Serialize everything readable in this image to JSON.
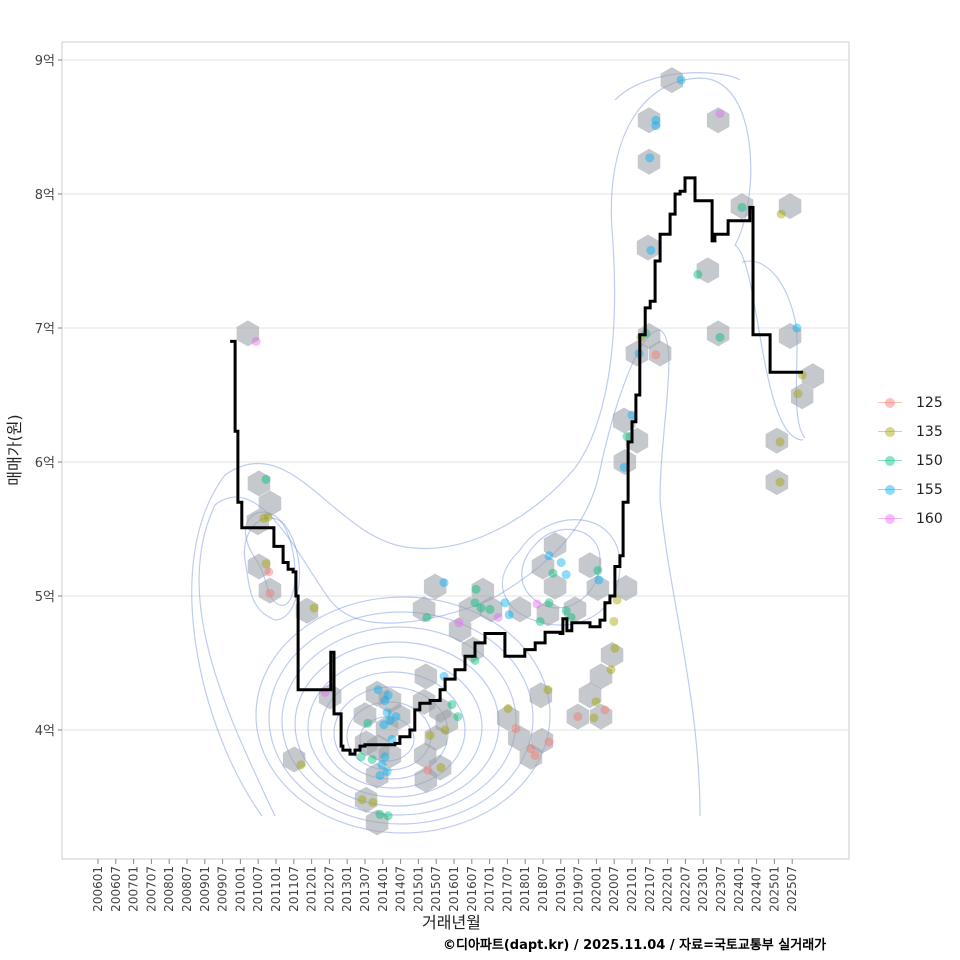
{
  "chart_data": {
    "type": "scatter",
    "title": "",
    "xlabel": "거래년월",
    "ylabel": "매매가(원)",
    "caption": "©디아파트(dapt.kr) / 2025.11.04 / 자료=국토교통부 실거래가",
    "x_ticks": [
      "200601",
      "200607",
      "200701",
      "200707",
      "200801",
      "200807",
      "200901",
      "200907",
      "201001",
      "201007",
      "201101",
      "201107",
      "201201",
      "201207",
      "201301",
      "201307",
      "201401",
      "201407",
      "201501",
      "201507",
      "201601",
      "201607",
      "201701",
      "201707",
      "201801",
      "201807",
      "201901",
      "201907",
      "202001",
      "202007",
      "202101",
      "202107",
      "202201",
      "202207",
      "202301",
      "202307",
      "202401",
      "202407",
      "202501",
      "202507"
    ],
    "y_ticks": [
      {
        "value": 4,
        "label": "4억"
      },
      {
        "value": 5,
        "label": "5억"
      },
      {
        "value": 6,
        "label": "6억"
      },
      {
        "value": 7,
        "label": "7억"
      },
      {
        "value": 8,
        "label": "8억"
      },
      {
        "value": 9,
        "label": "9억"
      }
    ],
    "y_unit": "억원",
    "grid": true,
    "legend_position": "right",
    "legend": [
      {
        "label": "125",
        "color": "#F8766D"
      },
      {
        "label": "135",
        "color": "#A3A500"
      },
      {
        "label": "150",
        "color": "#00BF7D"
      },
      {
        "label": "155",
        "color": "#00B0F6"
      },
      {
        "label": "160",
        "color": "#E76BF3"
      }
    ],
    "median_step_line": [
      [
        2009.71,
        6.9
      ],
      [
        2009.85,
        6.23
      ],
      [
        2009.93,
        5.7
      ],
      [
        2010.04,
        5.51
      ],
      [
        2010.94,
        5.37
      ],
      [
        2011.2,
        5.25
      ],
      [
        2011.34,
        5.2
      ],
      [
        2011.48,
        5.18
      ],
      [
        2011.56,
        5.0
      ],
      [
        2011.62,
        4.3
      ],
      [
        2012.54,
        4.58
      ],
      [
        2012.63,
        4.12
      ],
      [
        2012.83,
        3.88
      ],
      [
        2012.88,
        3.85
      ],
      [
        2013.08,
        3.82
      ],
      [
        2013.22,
        3.85
      ],
      [
        2013.36,
        3.88
      ],
      [
        2013.5,
        3.89
      ],
      [
        2014.34,
        3.9
      ],
      [
        2014.48,
        3.95
      ],
      [
        2014.76,
        4.0
      ],
      [
        2014.9,
        4.15
      ],
      [
        2015.04,
        4.2
      ],
      [
        2015.33,
        4.22
      ],
      [
        2015.61,
        4.3
      ],
      [
        2015.75,
        4.38
      ],
      [
        2016.03,
        4.45
      ],
      [
        2016.31,
        4.55
      ],
      [
        2016.59,
        4.65
      ],
      [
        2016.87,
        4.72
      ],
      [
        2017.29,
        4.72
      ],
      [
        2017.43,
        4.55
      ],
      [
        2017.85,
        4.55
      ],
      [
        2017.99,
        4.6
      ],
      [
        2018.28,
        4.65
      ],
      [
        2018.56,
        4.73
      ],
      [
        2018.98,
        4.72
      ],
      [
        2019.06,
        4.83
      ],
      [
        2019.17,
        4.74
      ],
      [
        2019.31,
        4.8
      ],
      [
        2019.82,
        4.77
      ],
      [
        2020.1,
        4.82
      ],
      [
        2020.24,
        4.95
      ],
      [
        2020.38,
        5.0
      ],
      [
        2020.52,
        5.22
      ],
      [
        2020.66,
        5.3
      ],
      [
        2020.75,
        5.7
      ],
      [
        2020.89,
        6.15
      ],
      [
        2021.0,
        6.3
      ],
      [
        2021.11,
        6.5
      ],
      [
        2021.22,
        6.95
      ],
      [
        2021.37,
        7.15
      ],
      [
        2021.51,
        7.2
      ],
      [
        2021.65,
        7.5
      ],
      [
        2021.79,
        7.7
      ],
      [
        2022.07,
        7.85
      ],
      [
        2022.21,
        8.0
      ],
      [
        2022.35,
        8.02
      ],
      [
        2022.49,
        8.12
      ],
      [
        2022.63,
        8.12
      ],
      [
        2022.77,
        7.95
      ],
      [
        2023.19,
        7.95
      ],
      [
        2023.25,
        7.65
      ],
      [
        2023.33,
        7.7
      ],
      [
        2023.61,
        7.7
      ],
      [
        2023.7,
        7.8
      ],
      [
        2024.26,
        7.8
      ],
      [
        2024.31,
        7.9
      ],
      [
        2024.4,
        6.95
      ],
      [
        2024.82,
        6.95
      ],
      [
        2024.88,
        6.67
      ],
      [
        2025.8,
        6.67
      ]
    ],
    "hexbins": [
      [
        2010.21,
        6.96
      ],
      [
        2010.52,
        5.84
      ],
      [
        2010.83,
        5.69
      ],
      [
        2010.49,
        5.55
      ],
      [
        2010.52,
        5.22
      ],
      [
        2010.83,
        5.04
      ],
      [
        2011.87,
        4.89
      ],
      [
        2011.51,
        3.78
      ],
      [
        2012.52,
        4.25
      ],
      [
        2013.5,
        4.11
      ],
      [
        2013.84,
        4.27
      ],
      [
        2014.2,
        4.22
      ],
      [
        2014.46,
        4.1
      ],
      [
        2014.12,
        4.01
      ],
      [
        2013.87,
        3.87
      ],
      [
        2013.53,
        3.9
      ],
      [
        2014.2,
        3.81
      ],
      [
        2013.84,
        3.66
      ],
      [
        2013.53,
        3.48
      ],
      [
        2013.84,
        3.31
      ],
      [
        2015.21,
        4.4
      ],
      [
        2015.16,
        4.21
      ],
      [
        2015.61,
        4.15
      ],
      [
        2015.8,
        4.06
      ],
      [
        2015.49,
        3.94
      ],
      [
        2015.19,
        3.81
      ],
      [
        2015.61,
        3.72
      ],
      [
        2015.21,
        3.63
      ],
      [
        2015.47,
        5.07
      ],
      [
        2015.16,
        4.9
      ],
      [
        2016.17,
        4.75
      ],
      [
        2016.81,
        5.04
      ],
      [
        2016.45,
        4.9
      ],
      [
        2017.04,
        4.9
      ],
      [
        2016.53,
        4.6
      ],
      [
        2017.85,
        4.9
      ],
      [
        2017.52,
        4.09
      ],
      [
        2017.83,
        3.94
      ],
      [
        2018.16,
        3.8
      ],
      [
        2018.47,
        3.92
      ],
      [
        2018.44,
        4.26
      ],
      [
        2018.84,
        5.38
      ],
      [
        2018.5,
        5.22
      ],
      [
        2018.84,
        5.07
      ],
      [
        2018.64,
        4.87
      ],
      [
        2019.4,
        4.9
      ],
      [
        2019.82,
        5.23
      ],
      [
        2020.04,
        5.06
      ],
      [
        2020.83,
        5.06
      ],
      [
        2020.44,
        4.56
      ],
      [
        2020.13,
        4.4
      ],
      [
        2019.82,
        4.26
      ],
      [
        2020.13,
        4.1
      ],
      [
        2019.48,
        4.1
      ],
      [
        2020.78,
        6.31
      ],
      [
        2021.14,
        6.16
      ],
      [
        2020.8,
        6.0
      ],
      [
        2021.48,
        6.94
      ],
      [
        2021.79,
        6.81
      ],
      [
        2021.14,
        6.81
      ],
      [
        2021.45,
        7.6
      ],
      [
        2021.48,
        8.24
      ],
      [
        2021.48,
        8.55
      ],
      [
        2022.12,
        8.85
      ],
      [
        2023.13,
        7.43
      ],
      [
        2023.42,
        8.55
      ],
      [
        2023.42,
        6.96
      ],
      [
        2024.09,
        7.91
      ],
      [
        2025.44,
        7.91
      ],
      [
        2025.44,
        6.94
      ],
      [
        2025.07,
        6.16
      ],
      [
        2025.07,
        5.85
      ],
      [
        2026.08,
        6.64
      ],
      [
        2025.78,
        6.49
      ]
    ],
    "points": [
      [
        2010.44,
        6.9,
        "160"
      ],
      [
        2010.72,
        5.87,
        "150"
      ],
      [
        2010.66,
        5.58,
        "135"
      ],
      [
        2010.78,
        5.59,
        "135"
      ],
      [
        2010.72,
        5.24,
        "135"
      ],
      [
        2010.8,
        5.18,
        "125"
      ],
      [
        2010.83,
        5.02,
        "125"
      ],
      [
        2012.07,
        4.91,
        "135"
      ],
      [
        2011.7,
        3.74,
        "135"
      ],
      [
        2012.38,
        4.28,
        "160"
      ],
      [
        2013.58,
        4.05,
        "150"
      ],
      [
        2013.87,
        4.3,
        "155"
      ],
      [
        2014.06,
        4.22,
        "155"
      ],
      [
        2014.15,
        4.26,
        "155"
      ],
      [
        2014.12,
        4.13,
        "155"
      ],
      [
        2014.03,
        4.04,
        "155"
      ],
      [
        2014.2,
        4.07,
        "155"
      ],
      [
        2014.37,
        4.1,
        "155"
      ],
      [
        2014.26,
        3.93,
        "155"
      ],
      [
        2014.06,
        3.8,
        "155"
      ],
      [
        2013.98,
        3.74,
        "155"
      ],
      [
        2013.92,
        3.66,
        "155"
      ],
      [
        2014.12,
        3.69,
        "155"
      ],
      [
        2013.39,
        3.8,
        "150"
      ],
      [
        2013.7,
        3.78,
        "150"
      ],
      [
        2013.92,
        3.37,
        "150"
      ],
      [
        2014.15,
        3.36,
        "150"
      ],
      [
        2013.42,
        3.48,
        "135"
      ],
      [
        2013.72,
        3.46,
        "135"
      ],
      [
        2015.27,
        3.7,
        "125"
      ],
      [
        2015.63,
        3.72,
        "135"
      ],
      [
        2015.33,
        3.96,
        "135"
      ],
      [
        2015.75,
        4.0,
        "135"
      ],
      [
        2015.94,
        4.19,
        "150"
      ],
      [
        2016.11,
        4.1,
        "150"
      ],
      [
        2015.72,
        4.4,
        "155"
      ],
      [
        2015.24,
        4.84,
        "150"
      ],
      [
        2015.72,
        5.1,
        "155"
      ],
      [
        2016.14,
        4.8,
        "160"
      ],
      [
        2016.59,
        4.95,
        "150"
      ],
      [
        2016.62,
        5.05,
        "150"
      ],
      [
        2016.76,
        4.91,
        "150"
      ],
      [
        2017.01,
        4.9,
        "150"
      ],
      [
        2016.59,
        4.52,
        "150"
      ],
      [
        2017.24,
        4.84,
        "160"
      ],
      [
        2017.43,
        4.95,
        "155"
      ],
      [
        2017.55,
        4.86,
        "155"
      ],
      [
        2017.52,
        4.16,
        "135"
      ],
      [
        2017.74,
        4.01,
        "125"
      ],
      [
        2018.16,
        3.86,
        "125"
      ],
      [
        2018.28,
        3.81,
        "125"
      ],
      [
        2018.67,
        3.91,
        "125"
      ],
      [
        2018.64,
        4.3,
        "135"
      ],
      [
        2018.33,
        4.94,
        "160"
      ],
      [
        2018.42,
        4.81,
        "150"
      ],
      [
        2018.67,
        5.3,
        "155"
      ],
      [
        2018.78,
        5.17,
        "150"
      ],
      [
        2018.67,
        4.95,
        "150"
      ],
      [
        2019.01,
        5.25,
        "155"
      ],
      [
        2019.15,
        5.16,
        "155"
      ],
      [
        2019.15,
        4.89,
        "150"
      ],
      [
        2019.29,
        4.84,
        "150"
      ],
      [
        2019.48,
        4.1,
        "125"
      ],
      [
        2019.93,
        4.09,
        "135"
      ],
      [
        2019.99,
        4.21,
        "135"
      ],
      [
        2020.24,
        4.15,
        "125"
      ],
      [
        2020.41,
        4.45,
        "135"
      ],
      [
        2020.52,
        4.61,
        "135"
      ],
      [
        2020.04,
        5.19,
        "150"
      ],
      [
        2020.07,
        5.12,
        "155"
      ],
      [
        2020.49,
        4.81,
        "135"
      ],
      [
        2020.58,
        4.97,
        "135"
      ],
      [
        2020.78,
        5.96,
        "155"
      ],
      [
        2020.86,
        6.19,
        "150"
      ],
      [
        2021.0,
        6.35,
        "155"
      ],
      [
        2021.2,
        6.81,
        "155"
      ],
      [
        2021.25,
        6.93,
        "135"
      ],
      [
        2021.39,
        6.96,
        "150"
      ],
      [
        2021.67,
        6.8,
        "125"
      ],
      [
        2021.53,
        7.58,
        "155"
      ],
      [
        2021.5,
        8.27,
        "155"
      ],
      [
        2021.67,
        8.55,
        "155"
      ],
      [
        2021.67,
        8.51,
        "155"
      ],
      [
        2022.38,
        8.85,
        "155"
      ],
      [
        2022.85,
        7.4,
        "150"
      ],
      [
        2023.47,
        6.93,
        "150"
      ],
      [
        2023.47,
        8.6,
        "160"
      ],
      [
        2024.09,
        7.9,
        "150"
      ],
      [
        2025.19,
        7.85,
        "135"
      ],
      [
        2025.63,
        7.0,
        "155"
      ],
      [
        2025.16,
        6.15,
        "135"
      ],
      [
        2025.16,
        5.85,
        "135"
      ],
      [
        2025.66,
        6.51,
        "135"
      ],
      [
        2025.78,
        6.65,
        "135"
      ]
    ]
  }
}
